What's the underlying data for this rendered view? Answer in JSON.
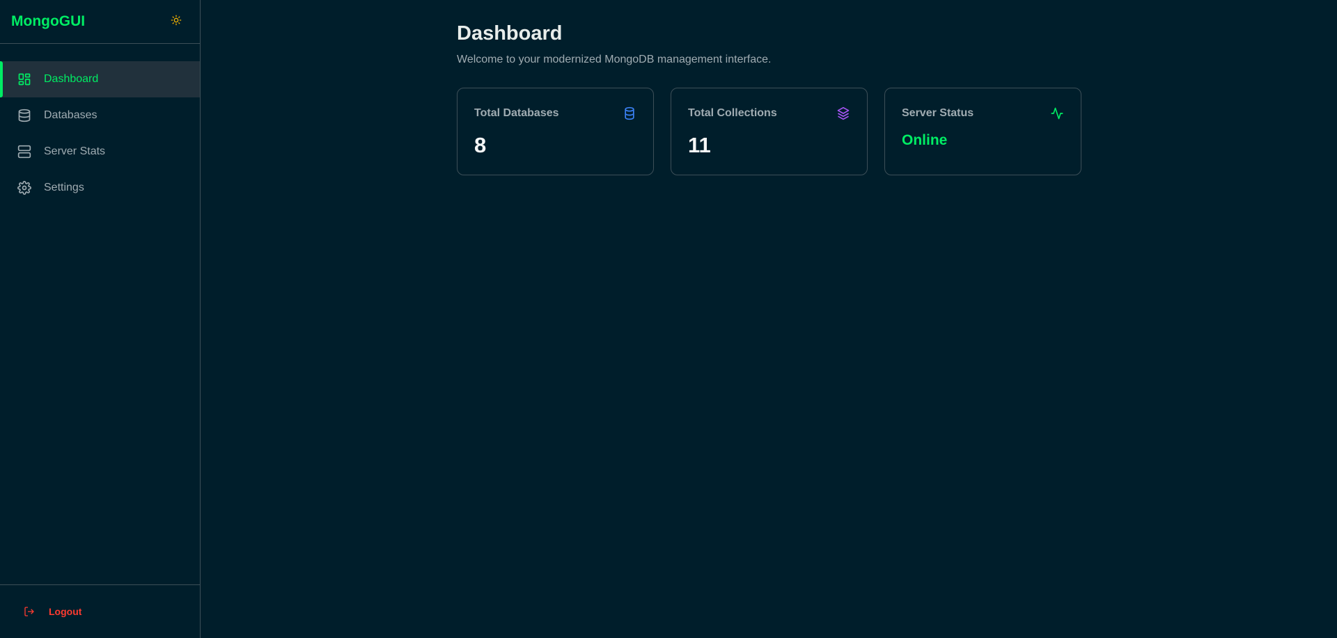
{
  "app": {
    "title": "MongoGUI",
    "theme_icon": "sun-icon"
  },
  "sidebar": {
    "items": [
      {
        "label": "Dashboard",
        "icon": "dashboard-icon",
        "active": true
      },
      {
        "label": "Databases",
        "icon": "database-icon"
      },
      {
        "label": "Server Stats",
        "icon": "server-icon"
      },
      {
        "label": "Settings",
        "icon": "gear-icon"
      }
    ],
    "logout": "Logout"
  },
  "main": {
    "title": "Dashboard",
    "subtitle": "Welcome to your modernized MongoDB management interface.",
    "cards": [
      {
        "label": "Total Databases",
        "value": "8",
        "icon": "database-icon",
        "color": "#3b82f6"
      },
      {
        "label": "Total Collections",
        "value": "11",
        "icon": "layers-icon",
        "color": "#a855f7"
      },
      {
        "label": "Server Status",
        "value": "Online",
        "icon": "activity-icon",
        "color": "#00ed64"
      }
    ]
  },
  "colors": {
    "accent": "#00ed64",
    "background": "#001e2b",
    "logout": "#ff3b30",
    "theme_icon": "#f5b400"
  }
}
